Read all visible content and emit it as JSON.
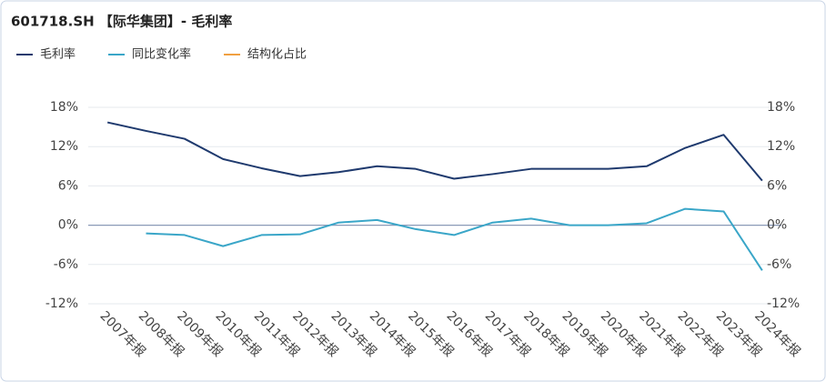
{
  "chart_data": {
    "type": "line",
    "title": "601718.SH 【际华集团】- 毛利率",
    "categories": [
      "2007年报",
      "2008年报",
      "2009年报",
      "2010年报",
      "2011年报",
      "2012年报",
      "2013年报",
      "2014年报",
      "2015年报",
      "2016年报",
      "2017年报",
      "2018年报",
      "2019年报",
      "2020年报",
      "2021年报",
      "2022年报",
      "2023年报",
      "2024年报"
    ],
    "series": [
      {
        "name": "毛利率",
        "color": "#1f3a6e",
        "values": [
          15.7,
          14.4,
          13.2,
          10.1,
          8.7,
          7.5,
          8.1,
          9.0,
          8.6,
          7.1,
          7.8,
          8.6,
          8.6,
          8.6,
          9.0,
          11.8,
          13.8,
          6.8
        ]
      },
      {
        "name": "同比变化率",
        "color": "#3aa6c8",
        "values": [
          null,
          -1.25,
          -1.5,
          -3.2,
          -1.5,
          -1.4,
          0.4,
          0.8,
          -0.6,
          -1.5,
          0.4,
          1.0,
          0,
          0,
          0.3,
          2.5,
          2.1,
          -6.9
        ]
      },
      {
        "name": "结构化占比",
        "color": "#f0a040",
        "values": [
          null,
          null,
          null,
          null,
          null,
          null,
          null,
          null,
          null,
          null,
          null,
          null,
          null,
          null,
          null,
          null,
          null,
          null
        ]
      }
    ],
    "ylim": [
      -12,
      18
    ],
    "yticks": [
      {
        "value": -12,
        "label": "-12%"
      },
      {
        "value": -6,
        "label": "-6%"
      },
      {
        "value": 0,
        "label": "0%"
      },
      {
        "value": 6,
        "label": "6%"
      },
      {
        "value": 12,
        "label": "12%"
      },
      {
        "value": 18,
        "label": "18%"
      }
    ],
    "y2lim": [
      -12,
      18
    ],
    "y2ticks": [
      {
        "value": -12,
        "label": "-12%"
      },
      {
        "value": -6,
        "label": "-6%"
      },
      {
        "value": 0,
        "label": "0%"
      },
      {
        "value": 6,
        "label": "6%"
      },
      {
        "value": 12,
        "label": "12%"
      },
      {
        "value": 18,
        "label": "18%"
      }
    ],
    "grid": true
  }
}
